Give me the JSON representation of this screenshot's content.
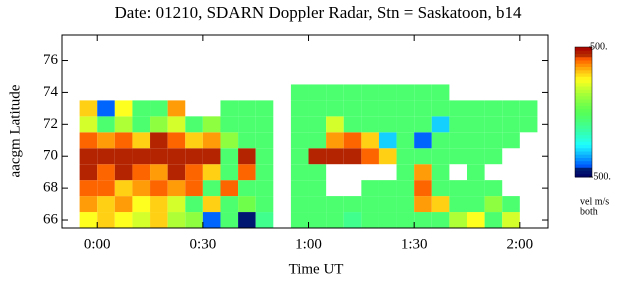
{
  "chart_data": {
    "type": "heatmap",
    "title": "Date: 01210, SDARN Doppler Radar, Stn = Saskatoon, b14",
    "xlabel": "Time UT",
    "ylabel": "aacgm Latitude",
    "x": [
      -2.5,
      2.5,
      7.5,
      12.5,
      17.5,
      22.5,
      27.5,
      32.5,
      37.5,
      42.5,
      47.5,
      52.5,
      57.5,
      62.5,
      67.5,
      72.5,
      77.5,
      82.5,
      87.5,
      92.5,
      97.5,
      102.5,
      107.5,
      112.5,
      117.5,
      122.5
    ],
    "y": [
      66,
      67,
      68,
      69,
      70,
      71,
      72,
      73,
      74
    ],
    "values": [
      [
        250,
        300,
        250,
        200,
        300,
        150,
        100,
        -400,
        -50,
        -450,
        -100,
        null,
        -50,
        -50,
        -50,
        -100,
        -50,
        -50,
        -50,
        -50,
        -50,
        150,
        250,
        -50,
        200,
        null
      ],
      [
        350,
        300,
        350,
        250,
        300,
        200,
        -50,
        300,
        -50,
        50,
        -50,
        null,
        -50,
        -50,
        -50,
        -50,
        -50,
        -50,
        -50,
        350,
        300,
        -50,
        -50,
        100,
        -50,
        null
      ],
      [
        400,
        400,
        300,
        350,
        400,
        350,
        400,
        -50,
        400,
        -50,
        -50,
        null,
        -50,
        -50,
        null,
        null,
        -50,
        -50,
        -50,
        400,
        -50,
        -50,
        -50,
        -50,
        null,
        null
      ],
      [
        450,
        400,
        450,
        400,
        350,
        450,
        400,
        300,
        -50,
        400,
        -50,
        null,
        -50,
        -50,
        null,
        null,
        null,
        null,
        -50,
        350,
        -50,
        null,
        -50,
        null,
        null,
        null
      ],
      [
        450,
        450,
        450,
        450,
        450,
        450,
        450,
        450,
        -50,
        450,
        -50,
        null,
        -50,
        450,
        450,
        450,
        400,
        300,
        -50,
        -50,
        -50,
        -50,
        -50,
        -50,
        null,
        null
      ],
      [
        400,
        350,
        400,
        300,
        450,
        400,
        300,
        350,
        100,
        -50,
        -50,
        null,
        -50,
        -50,
        350,
        400,
        300,
        -300,
        -50,
        -400,
        -50,
        -50,
        -50,
        -50,
        -50,
        null
      ],
      [
        200,
        -50,
        150,
        -50,
        100,
        200,
        -50,
        100,
        -50,
        -50,
        -50,
        null,
        -50,
        -50,
        200,
        -50,
        -50,
        -50,
        -50,
        -50,
        -300,
        -50,
        -50,
        -50,
        -50,
        -50
      ],
      [
        300,
        -400,
        250,
        -50,
        -50,
        350,
        null,
        null,
        -50,
        -50,
        -50,
        null,
        -50,
        -50,
        -50,
        -50,
        -50,
        -50,
        -50,
        -50,
        -50,
        -50,
        -50,
        -50,
        -50,
        -50
      ],
      [
        null,
        null,
        null,
        null,
        null,
        null,
        null,
        null,
        null,
        null,
        null,
        null,
        -50,
        -50,
        -50,
        -50,
        -50,
        -50,
        -50,
        -50,
        -50,
        null,
        null,
        null,
        null,
        null
      ]
    ],
    "xlim": [
      -10,
      128
    ],
    "ylim": [
      65.5,
      77.6
    ],
    "xticks": [
      {
        "value": 0,
        "label": "0:00"
      },
      {
        "value": 30,
        "label": "0:30"
      },
      {
        "value": 60,
        "label": "1:00"
      },
      {
        "value": 90,
        "label": "1:30"
      },
      {
        "value": 120,
        "label": "2:00"
      }
    ],
    "yticks": [
      66,
      68,
      70,
      72,
      74,
      76
    ],
    "zlim": [
      -500,
      500
    ],
    "zticks": [
      {
        "value": 500,
        "label": "500."
      },
      {
        "value": -500,
        "label": "-500."
      }
    ],
    "colorbar_label": [
      "vel m/s",
      "both"
    ]
  }
}
